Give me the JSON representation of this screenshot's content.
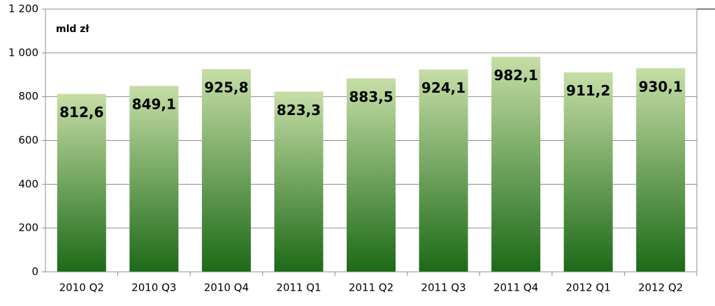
{
  "chart_data": {
    "type": "bar",
    "annotation": "mld zł",
    "categories": [
      "2010 Q2",
      "2010 Q3",
      "2010 Q4",
      "2011 Q1",
      "2011 Q2",
      "2011 Q3",
      "2011 Q4",
      "2012 Q1",
      "2012 Q2"
    ],
    "values": [
      812.6,
      849.1,
      925.8,
      823.3,
      883.5,
      924.1,
      982.1,
      911.2,
      930.1
    ],
    "value_labels": [
      "812,6",
      "849,1",
      "925,8",
      "823,3",
      "883,5",
      "924,1",
      "982,1",
      "911,2",
      "930,1"
    ],
    "gradient": [
      "#c6dea6",
      "#1c6a17"
    ],
    "ylim": [
      0,
      1200
    ],
    "yticks": [
      0,
      200,
      400,
      600,
      800,
      {
        "value": 1000,
        "label": "1 000"
      },
      {
        "value": 1200,
        "label": "1 200"
      }
    ],
    "grid": true
  }
}
